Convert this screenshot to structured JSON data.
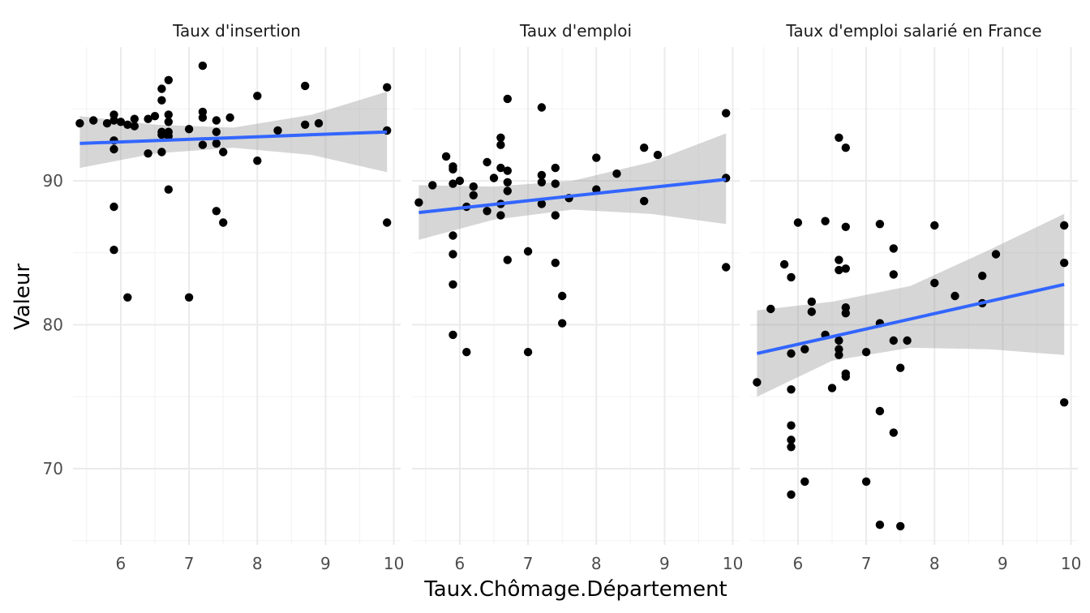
{
  "chart_data": {
    "type": "scatter",
    "xlabel": "Taux.Chômage.Département",
    "ylabel": "Valeur",
    "xlim": [
      5.3,
      10.1
    ],
    "ylim": [
      64.7,
      99.3
    ],
    "x_ticks": [
      6,
      7,
      8,
      9,
      10
    ],
    "y_ticks": [
      70,
      80,
      90
    ],
    "grid": true,
    "colors": {
      "points": "#000000",
      "fit_line": "#3366ff",
      "confidence_band": "#999999"
    },
    "panels": [
      {
        "title": "Taux d'insertion",
        "points": [
          [
            5.4,
            94.0
          ],
          [
            5.6,
            94.2
          ],
          [
            5.8,
            94.0
          ],
          [
            5.9,
            94.6
          ],
          [
            5.9,
            94.2
          ],
          [
            5.9,
            92.8
          ],
          [
            5.9,
            92.2
          ],
          [
            5.9,
            88.2
          ],
          [
            5.9,
            85.2
          ],
          [
            6.0,
            94.1
          ],
          [
            6.1,
            93.9
          ],
          [
            6.1,
            81.9
          ],
          [
            6.2,
            94.3
          ],
          [
            6.2,
            93.8
          ],
          [
            6.4,
            94.3
          ],
          [
            6.4,
            91.9
          ],
          [
            6.5,
            94.5
          ],
          [
            6.6,
            96.4
          ],
          [
            6.6,
            95.6
          ],
          [
            6.6,
            93.4
          ],
          [
            6.6,
            92.0
          ],
          [
            6.6,
            93.2
          ],
          [
            6.7,
            97.0
          ],
          [
            6.7,
            94.6
          ],
          [
            6.7,
            94.1
          ],
          [
            6.7,
            93.4
          ],
          [
            6.7,
            93.1
          ],
          [
            6.7,
            89.4
          ],
          [
            7.0,
            93.6
          ],
          [
            7.0,
            81.9
          ],
          [
            7.2,
            98.0
          ],
          [
            7.2,
            94.8
          ],
          [
            7.2,
            94.4
          ],
          [
            7.2,
            92.5
          ],
          [
            7.4,
            94.2
          ],
          [
            7.4,
            93.4
          ],
          [
            7.4,
            92.6
          ],
          [
            7.4,
            87.9
          ],
          [
            7.5,
            92.0
          ],
          [
            7.5,
            87.1
          ],
          [
            7.6,
            94.4
          ],
          [
            8.0,
            95.9
          ],
          [
            8.0,
            91.4
          ],
          [
            8.3,
            93.5
          ],
          [
            8.7,
            93.9
          ],
          [
            8.7,
            96.6
          ],
          [
            8.9,
            94.0
          ],
          [
            9.9,
            96.5
          ],
          [
            9.9,
            93.5
          ],
          [
            9.9,
            87.1
          ]
        ],
        "fit": {
          "x": [
            5.4,
            9.9
          ],
          "y": [
            92.6,
            93.4
          ]
        },
        "band": {
          "x": [
            5.4,
            6.5,
            7.65,
            8.8,
            9.9
          ],
          "upper": [
            94.5,
            93.9,
            93.7,
            94.6,
            96.2
          ],
          "lower": [
            90.9,
            91.9,
            92.3,
            91.8,
            90.6
          ]
        }
      },
      {
        "title": "Taux d'emploi",
        "points": [
          [
            5.4,
            88.5
          ],
          [
            5.6,
            89.7
          ],
          [
            5.8,
            91.7
          ],
          [
            5.9,
            91.0
          ],
          [
            5.9,
            90.8
          ],
          [
            5.9,
            89.8
          ],
          [
            5.9,
            86.2
          ],
          [
            5.9,
            84.9
          ],
          [
            5.9,
            82.8
          ],
          [
            5.9,
            79.3
          ],
          [
            6.0,
            90.0
          ],
          [
            6.1,
            88.2
          ],
          [
            6.1,
            78.1
          ],
          [
            6.2,
            89.6
          ],
          [
            6.2,
            89.0
          ],
          [
            6.4,
            91.3
          ],
          [
            6.4,
            87.9
          ],
          [
            6.5,
            90.2
          ],
          [
            6.6,
            93.0
          ],
          [
            6.6,
            92.5
          ],
          [
            6.6,
            90.9
          ],
          [
            6.6,
            88.4
          ],
          [
            6.6,
            87.6
          ],
          [
            6.7,
            95.7
          ],
          [
            6.7,
            90.7
          ],
          [
            6.7,
            89.9
          ],
          [
            6.7,
            89.3
          ],
          [
            6.7,
            84.5
          ],
          [
            7.0,
            85.1
          ],
          [
            7.0,
            78.1
          ],
          [
            7.2,
            95.1
          ],
          [
            7.2,
            90.4
          ],
          [
            7.2,
            89.9
          ],
          [
            7.2,
            88.4
          ],
          [
            7.4,
            90.9
          ],
          [
            7.4,
            89.8
          ],
          [
            7.4,
            87.6
          ],
          [
            7.4,
            84.3
          ],
          [
            7.5,
            82.0
          ],
          [
            7.5,
            80.1
          ],
          [
            7.6,
            88.8
          ],
          [
            8.0,
            91.6
          ],
          [
            8.0,
            89.4
          ],
          [
            8.3,
            90.5
          ],
          [
            8.7,
            92.3
          ],
          [
            8.7,
            88.6
          ],
          [
            8.9,
            91.8
          ],
          [
            9.9,
            94.7
          ],
          [
            9.9,
            90.2
          ],
          [
            9.9,
            84.0
          ]
        ],
        "fit": {
          "x": [
            5.4,
            9.9
          ],
          "y": [
            87.8,
            90.1
          ]
        },
        "band": {
          "x": [
            5.4,
            6.5,
            7.65,
            8.8,
            9.9
          ],
          "upper": [
            89.7,
            89.6,
            90.0,
            91.3,
            93.3
          ],
          "lower": [
            85.9,
            87.3,
            88.0,
            87.7,
            87.0
          ]
        }
      },
      {
        "title": "Taux d'emploi salarié en France",
        "points": [
          [
            5.4,
            76.0
          ],
          [
            5.6,
            81.1
          ],
          [
            5.8,
            84.2
          ],
          [
            5.9,
            83.3
          ],
          [
            5.9,
            78.0
          ],
          [
            5.9,
            75.5
          ],
          [
            5.9,
            73.0
          ],
          [
            5.9,
            72.0
          ],
          [
            5.9,
            71.5
          ],
          [
            5.9,
            68.2
          ],
          [
            6.0,
            87.1
          ],
          [
            6.1,
            78.3
          ],
          [
            6.1,
            69.1
          ],
          [
            6.2,
            81.6
          ],
          [
            6.2,
            80.9
          ],
          [
            6.4,
            87.2
          ],
          [
            6.4,
            79.3
          ],
          [
            6.5,
            75.6
          ],
          [
            6.6,
            93.0
          ],
          [
            6.6,
            84.5
          ],
          [
            6.6,
            83.8
          ],
          [
            6.6,
            78.9
          ],
          [
            6.6,
            78.3
          ],
          [
            6.6,
            77.9
          ],
          [
            6.7,
            92.3
          ],
          [
            6.7,
            86.8
          ],
          [
            6.7,
            83.9
          ],
          [
            6.7,
            81.2
          ],
          [
            6.7,
            80.8
          ],
          [
            6.7,
            76.6
          ],
          [
            6.7,
            76.4
          ],
          [
            7.0,
            78.1
          ],
          [
            7.0,
            69.1
          ],
          [
            7.2,
            87.0
          ],
          [
            7.2,
            80.1
          ],
          [
            7.2,
            74.0
          ],
          [
            7.2,
            66.1
          ],
          [
            7.4,
            85.3
          ],
          [
            7.4,
            83.5
          ],
          [
            7.4,
            78.9
          ],
          [
            7.4,
            72.5
          ],
          [
            7.5,
            77.0
          ],
          [
            7.5,
            66.0
          ],
          [
            7.6,
            78.9
          ],
          [
            8.0,
            86.9
          ],
          [
            8.0,
            82.9
          ],
          [
            8.3,
            82.0
          ],
          [
            8.7,
            83.4
          ],
          [
            8.7,
            81.5
          ],
          [
            8.9,
            84.9
          ],
          [
            9.9,
            86.9
          ],
          [
            9.9,
            84.3
          ],
          [
            9.9,
            74.6
          ]
        ],
        "fit": {
          "x": [
            5.4,
            9.9
          ],
          "y": [
            78.0,
            82.8
          ]
        },
        "band": {
          "x": [
            5.4,
            6.5,
            7.65,
            8.8,
            9.9
          ],
          "upper": [
            81.0,
            81.6,
            82.7,
            85.2,
            87.7
          ],
          "lower": [
            75.0,
            77.5,
            78.4,
            78.3,
            77.9
          ]
        }
      }
    ]
  }
}
